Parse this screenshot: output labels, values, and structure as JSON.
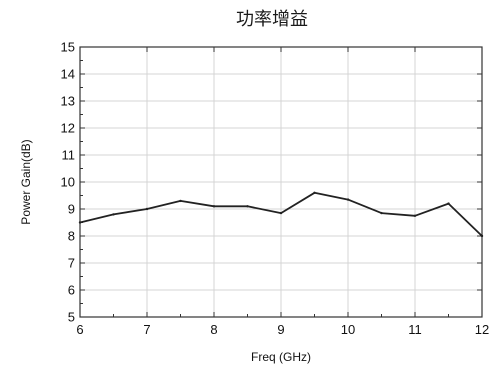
{
  "chart_data": {
    "type": "line",
    "title": "功率增益",
    "xlabel": "Freq (GHz)",
    "ylabel": "Power Gain(dB)",
    "xlim": [
      6,
      12
    ],
    "ylim": [
      5,
      15
    ],
    "x_ticks": [
      6,
      7,
      8,
      9,
      10,
      11,
      12
    ],
    "y_ticks": [
      5,
      6,
      7,
      8,
      9,
      10,
      11,
      12,
      13,
      14,
      15
    ],
    "grid": true,
    "x": [
      6,
      6.5,
      7,
      7.5,
      8,
      8.5,
      9,
      9.5,
      10,
      10.5,
      11,
      11.5,
      12
    ],
    "series": [
      {
        "values": [
          8.5,
          8.8,
          9.0,
          9.3,
          9.1,
          9.1,
          8.85,
          9.6,
          9.35,
          8.85,
          8.75,
          9.2,
          8.0
        ],
        "color": "#222222"
      }
    ],
    "colors": {
      "grid": "#d4d4d4",
      "frame": "#333333",
      "line": "#222222"
    }
  }
}
